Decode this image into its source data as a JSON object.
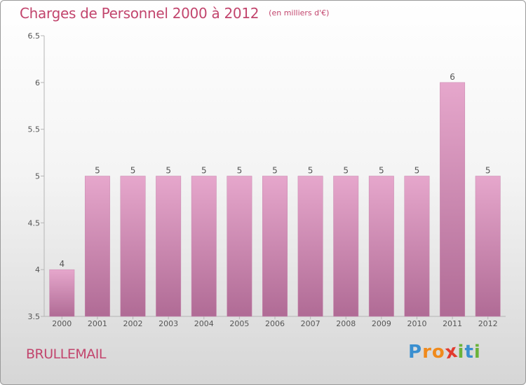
{
  "header": {
    "title": "Charges de Personnel 2000 à 2012",
    "subtitle": "(en milliers d'€)"
  },
  "footer": {
    "commune": "BRULLEMAIL",
    "brand": {
      "letters": [
        "P",
        "r",
        "o",
        "x",
        "i",
        "t",
        "i"
      ],
      "colors": [
        "#3a8fd0",
        "#f08a1c",
        "#f08a1c",
        "#e23b2e",
        "#6bb33a",
        "#3a8fd0",
        "#6bb33a"
      ]
    }
  },
  "chart_data": {
    "type": "bar",
    "categories": [
      "2000",
      "2001",
      "2002",
      "2003",
      "2004",
      "2005",
      "2006",
      "2007",
      "2008",
      "2009",
      "2010",
      "2011",
      "2012"
    ],
    "values": [
      4,
      5,
      5,
      5,
      5,
      5,
      5,
      5,
      5,
      5,
      5,
      6,
      5
    ],
    "value_labels": [
      "4",
      "5",
      "5",
      "5",
      "5",
      "5",
      "5",
      "5",
      "5",
      "5",
      "5",
      "6",
      "5"
    ],
    "yticks": [
      "3.5",
      "4",
      "4.5",
      "5",
      "5.5",
      "6",
      "6.5"
    ],
    "ylim": [
      3.5,
      6.5
    ],
    "grid": false,
    "bar_color": "#d994bb",
    "xlabel": "",
    "ylabel": ""
  }
}
